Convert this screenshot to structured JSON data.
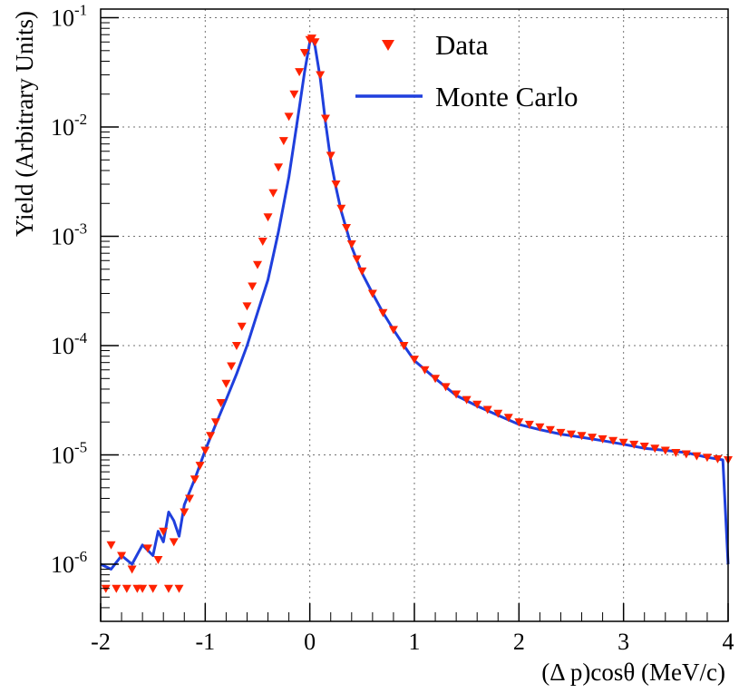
{
  "chart_data": {
    "type": "scatter",
    "title": "",
    "xlabel": "(Δ p)cosθ (MeV/c)",
    "ylabel": "Yield (Arbitrary Units)",
    "xlim": [
      -2,
      4
    ],
    "ylim": [
      3e-07,
      0.12
    ],
    "yscale": "log",
    "grid": true,
    "legend_position": "top-right",
    "x_ticks": [
      {
        "value": -2,
        "label": "-2"
      },
      {
        "value": -1,
        "label": "-1"
      },
      {
        "value": 0,
        "label": "0"
      },
      {
        "value": 1,
        "label": "1"
      },
      {
        "value": 2,
        "label": "2"
      },
      {
        "value": 3,
        "label": "3"
      },
      {
        "value": 4,
        "label": "4"
      }
    ],
    "y_ticks": [
      {
        "value": 0.1,
        "mantissa": "10",
        "exponent": "-1"
      },
      {
        "value": 0.01,
        "mantissa": "10",
        "exponent": "-2"
      },
      {
        "value": 0.001,
        "mantissa": "10",
        "exponent": "-3"
      },
      {
        "value": 0.0001,
        "mantissa": "10",
        "exponent": "-4"
      },
      {
        "value": 1e-05,
        "mantissa": "10",
        "exponent": "-5"
      },
      {
        "value": 1e-06,
        "mantissa": "10",
        "exponent": "-6"
      }
    ],
    "series": [
      {
        "name": "Data",
        "kind": "markers",
        "marker": "down-triangle",
        "color": "#ff2200",
        "x": [
          -1.95,
          -1.9,
          -1.85,
          -1.8,
          -1.75,
          -1.7,
          -1.65,
          -1.6,
          -1.55,
          -1.5,
          -1.45,
          -1.4,
          -1.35,
          -1.3,
          -1.25,
          -1.2,
          -1.15,
          -1.1,
          -1.05,
          -1.0,
          -0.95,
          -0.9,
          -0.85,
          -0.8,
          -0.75,
          -0.7,
          -0.65,
          -0.6,
          -0.55,
          -0.5,
          -0.45,
          -0.4,
          -0.35,
          -0.3,
          -0.25,
          -0.2,
          -0.15,
          -0.1,
          -0.05,
          0.0,
          0.02,
          0.05,
          0.1,
          0.15,
          0.2,
          0.25,
          0.3,
          0.35,
          0.4,
          0.45,
          0.5,
          0.6,
          0.7,
          0.8,
          0.9,
          1.0,
          1.1,
          1.2,
          1.3,
          1.4,
          1.5,
          1.6,
          1.7,
          1.8,
          1.9,
          2.0,
          2.1,
          2.2,
          2.3,
          2.4,
          2.5,
          2.6,
          2.7,
          2.8,
          2.9,
          3.0,
          3.1,
          3.2,
          3.3,
          3.4,
          3.5,
          3.6,
          3.7,
          3.8,
          3.9,
          4.0
        ],
        "y": [
          6e-07,
          1.5e-06,
          6e-07,
          1.2e-06,
          6e-07,
          9e-07,
          6e-07,
          6e-07,
          1.4e-06,
          6e-07,
          1.1e-06,
          2e-06,
          6e-07,
          1.6e-06,
          6e-07,
          3e-06,
          4e-06,
          6e-06,
          8e-06,
          1.1e-05,
          1.5e-05,
          2e-05,
          3e-05,
          4.5e-05,
          6.5e-05,
          0.0001,
          0.00015,
          0.00023,
          0.00035,
          0.00055,
          0.0009,
          0.0015,
          0.0025,
          0.0043,
          0.0075,
          0.0125,
          0.02,
          0.032,
          0.048,
          0.063,
          0.065,
          0.06,
          0.03,
          0.012,
          0.0055,
          0.003,
          0.0018,
          0.0012,
          0.00085,
          0.00062,
          0.00048,
          0.0003,
          0.0002,
          0.00014,
          0.0001,
          7.5e-05,
          6e-05,
          5e-05,
          4.2e-05,
          3.6e-05,
          3.2e-05,
          2.9e-05,
          2.6e-05,
          2.4e-05,
          2.2e-05,
          2e-05,
          1.9e-05,
          1.8e-05,
          1.7e-05,
          1.6e-05,
          1.55e-05,
          1.5e-05,
          1.45e-05,
          1.4e-05,
          1.35e-05,
          1.3e-05,
          1.25e-05,
          1.2e-05,
          1.15e-05,
          1.1e-05,
          1.05e-05,
          1.02e-05,
          9.8e-06,
          9.5e-06,
          9.2e-06,
          9e-06
        ]
      },
      {
        "name": "Monte Carlo",
        "kind": "line",
        "color": "#1f3fdd",
        "x": [
          -2.0,
          -1.9,
          -1.8,
          -1.7,
          -1.6,
          -1.5,
          -1.45,
          -1.4,
          -1.35,
          -1.3,
          -1.25,
          -1.2,
          -1.1,
          -1.0,
          -0.9,
          -0.8,
          -0.7,
          -0.6,
          -0.5,
          -0.4,
          -0.3,
          -0.2,
          -0.1,
          -0.05,
          0.0,
          0.02,
          0.05,
          0.1,
          0.15,
          0.2,
          0.25,
          0.3,
          0.4,
          0.5,
          0.6,
          0.7,
          0.8,
          0.9,
          1.0,
          1.2,
          1.4,
          1.6,
          1.8,
          2.0,
          2.2,
          2.4,
          2.6,
          2.8,
          3.0,
          3.2,
          3.4,
          3.6,
          3.8,
          3.95,
          4.0
        ],
        "y": [
          1e-06,
          9e-07,
          1.2e-06,
          1e-06,
          1.5e-06,
          1.2e-06,
          2e-06,
          1.6e-06,
          3e-06,
          2.5e-06,
          1.8e-06,
          3.5e-06,
          6e-06,
          1.1e-05,
          1.9e-05,
          3.2e-05,
          5.5e-05,
          0.0001,
          0.0002,
          0.0004,
          0.0011,
          0.0035,
          0.015,
          0.032,
          0.06,
          0.066,
          0.055,
          0.028,
          0.011,
          0.005,
          0.0028,
          0.0017,
          0.0008,
          0.00046,
          0.0003,
          0.0002,
          0.00014,
          0.0001,
          7.3e-05,
          5e-05,
          3.5e-05,
          2.8e-05,
          2.3e-05,
          1.9e-05,
          1.7e-05,
          1.55e-05,
          1.45e-05,
          1.35e-05,
          1.25e-05,
          1.15e-05,
          1.1e-05,
          1.05e-05,
          9.5e-06,
          9e-06,
          1e-06
        ]
      }
    ]
  }
}
